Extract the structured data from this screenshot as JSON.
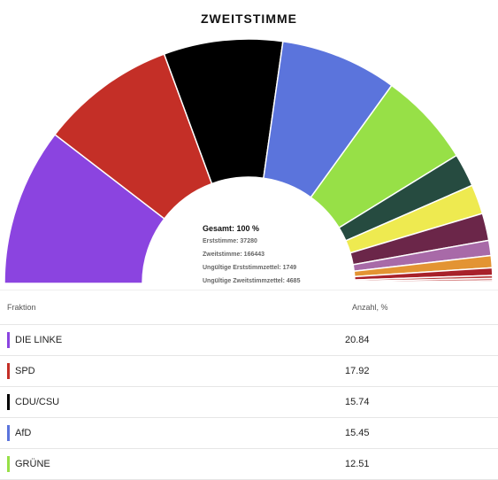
{
  "title": "ZWEITSTIMME",
  "summary": {
    "total": "Gesamt: 100 %",
    "lines": [
      "Erststimme: 37280",
      "Zweitstimme: 166443",
      "Ungültige Erststimmzettel: 1749",
      "Ungültige Zweitstimmzettel: 4685"
    ]
  },
  "table": {
    "header_party": "Fraktion",
    "header_value": "Anzahl, %"
  },
  "chart_data": {
    "type": "pie",
    "subtype": "semicircle-donut",
    "title": "ZWEITSTIMME",
    "slices": [
      {
        "label": "DIE LINKE",
        "value": 20.84,
        "color": "#8b44e0"
      },
      {
        "label": "SPD",
        "value": 17.92,
        "color": "#c42f27"
      },
      {
        "label": "CDU/CSU",
        "value": 15.74,
        "color": "#000000"
      },
      {
        "label": "AfD",
        "value": 15.45,
        "color": "#5b74dc"
      },
      {
        "label": "GRÜNE",
        "value": 12.51,
        "color": "#97e047"
      },
      {
        "label": "",
        "value": 4.4,
        "color": "#264b40"
      },
      {
        "label": "",
        "value": 3.9,
        "color": "#eeea50"
      },
      {
        "label": "",
        "value": 3.6,
        "color": "#6b2649"
      },
      {
        "label": "",
        "value": 2.0,
        "color": "#a86aa8"
      },
      {
        "label": "",
        "value": 1.6,
        "color": "#e39433"
      },
      {
        "label": "",
        "value": 1.0,
        "color": "#a8212a"
      },
      {
        "label": "",
        "value": 0.4,
        "color": "#b83a3a"
      },
      {
        "label": "",
        "value": 0.3,
        "color": "#c85555"
      },
      {
        "label": "",
        "value": 0.2,
        "color": "#d06b6b"
      },
      {
        "label": "",
        "value": 0.14,
        "color": "#e08080"
      }
    ],
    "table_rows": [
      {
        "label": "DIE LINKE",
        "value": "20.84",
        "color": "#8b44e0"
      },
      {
        "label": "SPD",
        "value": "17.92",
        "color": "#c42f27"
      },
      {
        "label": "CDU/CSU",
        "value": "15.74",
        "color": "#000000"
      },
      {
        "label": "AfD",
        "value": "15.45",
        "color": "#5b74dc"
      },
      {
        "label": "GRÜNE",
        "value": "12.51",
        "color": "#97e047"
      }
    ]
  }
}
